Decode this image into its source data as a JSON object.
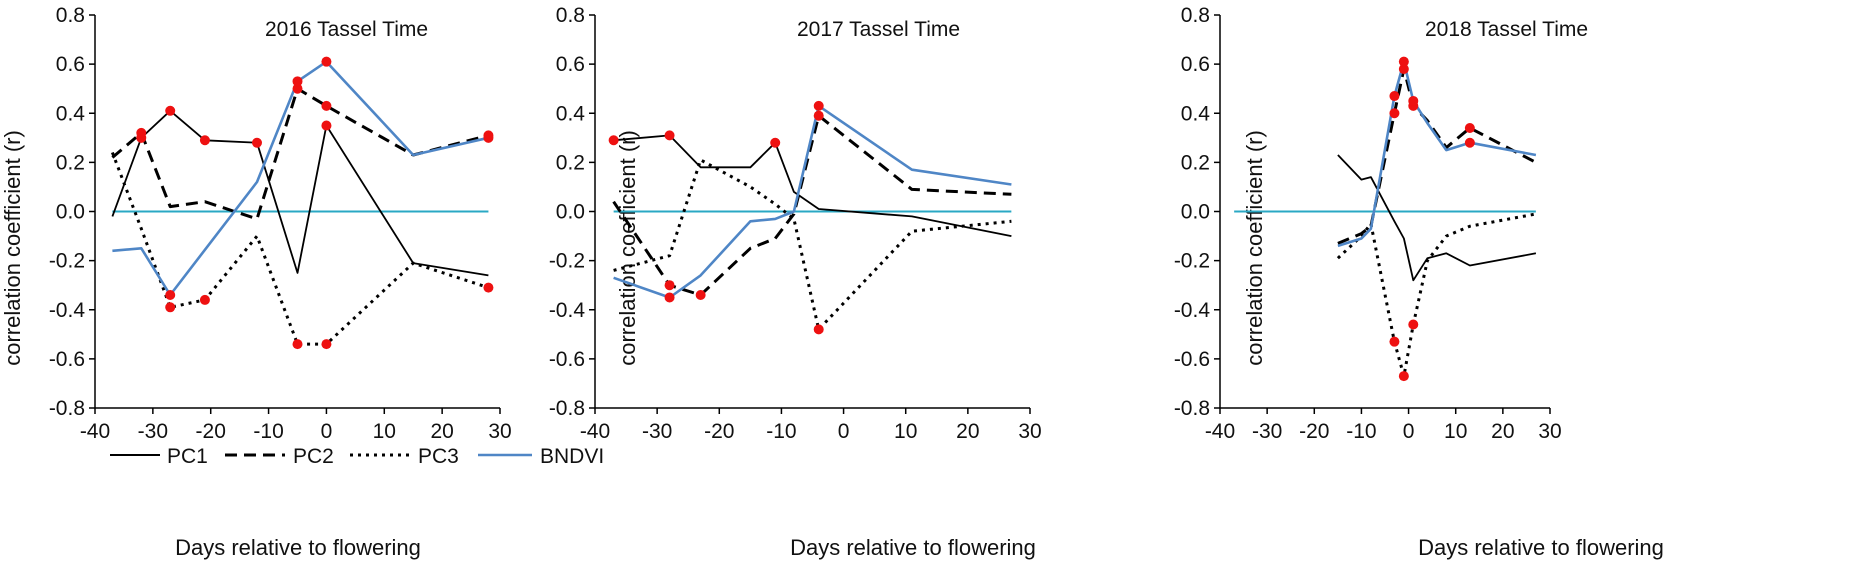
{
  "figure": {
    "legend": [
      {
        "series": "PC1",
        "label": "PC1"
      },
      {
        "series": "PC2",
        "label": "PC2"
      },
      {
        "series": "PC3",
        "label": "PC3"
      },
      {
        "series": "BNDVI",
        "label": "BNDVI"
      }
    ]
  },
  "series_style": {
    "PC1": {
      "color": "#000000",
      "dash": ""
    },
    "PC2": {
      "color": "#000000",
      "dash": "12,7"
    },
    "PC3": {
      "color": "#000000",
      "dash": "3,5"
    },
    "BNDVI": {
      "color": "#4f86c6",
      "dash": ""
    },
    "zero_line": {
      "color": "#2aa8c4"
    },
    "marker": {
      "color": "#ee1111"
    }
  },
  "chart_data": [
    {
      "type": "line",
      "title": "2016 Tassel Time",
      "xlabel": "Days relative to flowering",
      "ylabel": "correlation coefficient (r)",
      "xlim": [
        -40,
        30
      ],
      "ylim": [
        -0.8,
        0.8
      ],
      "xticks": [
        -40,
        -30,
        -20,
        -10,
        0,
        10,
        20,
        30
      ],
      "yticks": [
        -0.8,
        -0.6,
        -0.4,
        -0.2,
        0.0,
        0.2,
        0.4,
        0.6,
        0.8
      ],
      "xtick_labels": [
        "-40",
        "-30",
        "-20",
        "-10",
        "0",
        "10",
        "20",
        "30"
      ],
      "ytick_labels": [
        "-0.8",
        "-0.6",
        "-0.4",
        "-0.2",
        "0.0",
        "0.2",
        "0.4",
        "0.6",
        "0.8"
      ],
      "zero_line_x": [
        -37,
        28
      ],
      "series": [
        {
          "name": "PC1",
          "x": [
            -37,
            -32,
            -27,
            -21,
            -12,
            -5,
            0,
            15,
            28
          ],
          "y": [
            -0.02,
            0.3,
            0.41,
            0.29,
            0.28,
            -0.25,
            0.35,
            -0.21,
            -0.26
          ],
          "sig": [
            false,
            true,
            true,
            true,
            true,
            false,
            true,
            false,
            false
          ]
        },
        {
          "name": "PC2",
          "x": [
            -37,
            -32,
            -27,
            -21,
            -12,
            -5,
            0,
            15,
            28
          ],
          "y": [
            0.22,
            0.32,
            0.02,
            0.04,
            -0.03,
            0.5,
            0.43,
            0.23,
            0.31
          ],
          "sig": [
            false,
            true,
            false,
            false,
            false,
            true,
            true,
            false,
            true
          ]
        },
        {
          "name": "PC3",
          "x": [
            -37,
            -32,
            -27,
            -21,
            -12,
            -5,
            0,
            15,
            28
          ],
          "y": [
            0.24,
            -0.07,
            -0.39,
            -0.36,
            -0.1,
            -0.54,
            -0.54,
            -0.21,
            -0.31
          ],
          "sig": [
            false,
            false,
            true,
            true,
            false,
            true,
            true,
            false,
            true
          ]
        },
        {
          "name": "BNDVI",
          "x": [
            -37,
            -32,
            -27,
            -12,
            -5,
            0,
            15,
            28
          ],
          "y": [
            -0.16,
            -0.15,
            -0.34,
            0.12,
            0.53,
            0.61,
            0.23,
            0.3
          ],
          "sig": [
            false,
            false,
            true,
            false,
            true,
            true,
            false,
            true
          ]
        }
      ]
    },
    {
      "type": "line",
      "title": "2017 Tassel Time",
      "xlabel": "Days relative to flowering",
      "ylabel": "correlation coefficient (r)",
      "xlim": [
        -40,
        30
      ],
      "ylim": [
        -0.8,
        0.8
      ],
      "xticks": [
        -40,
        -30,
        -20,
        -10,
        0,
        10,
        20,
        30
      ],
      "yticks": [
        -0.8,
        -0.6,
        -0.4,
        -0.2,
        0.0,
        0.2,
        0.4,
        0.6,
        0.8
      ],
      "xtick_labels": [
        "-40",
        "-30",
        "-20",
        "-10",
        "0",
        "10",
        "20",
        "30"
      ],
      "ytick_labels": [
        "-0.8",
        "-0.6",
        "-0.4",
        "-0.2",
        "0.0",
        "0.2",
        "0.4",
        "0.6",
        "0.8"
      ],
      "zero_line_x": [
        -37,
        27
      ],
      "series": [
        {
          "name": "PC1",
          "x": [
            -37,
            -28,
            -23,
            -15,
            -11,
            -8,
            -4,
            11,
            27
          ],
          "y": [
            0.29,
            0.31,
            0.18,
            0.18,
            0.28,
            0.08,
            0.01,
            -0.02,
            -0.1
          ],
          "sig": [
            true,
            true,
            false,
            false,
            true,
            false,
            false,
            false,
            false
          ]
        },
        {
          "name": "PC2",
          "x": [
            -37,
            -28,
            -23,
            -15,
            -11,
            -8,
            -4,
            11,
            27
          ],
          "y": [
            0.04,
            -0.3,
            -0.34,
            -0.15,
            -0.11,
            -0.01,
            0.39,
            0.09,
            0.07
          ],
          "sig": [
            false,
            true,
            true,
            false,
            false,
            false,
            true,
            false,
            false
          ]
        },
        {
          "name": "PC3",
          "x": [
            -37,
            -28,
            -23,
            -15,
            -11,
            -8,
            -4,
            11,
            27
          ],
          "y": [
            -0.24,
            -0.18,
            0.21,
            0.1,
            0.03,
            -0.03,
            -0.48,
            -0.08,
            -0.04
          ],
          "sig": [
            false,
            false,
            false,
            false,
            false,
            false,
            true,
            false,
            false
          ]
        },
        {
          "name": "BNDVI",
          "x": [
            -37,
            -28,
            -23,
            -15,
            -11,
            -8,
            -4,
            11,
            27
          ],
          "y": [
            -0.27,
            -0.35,
            -0.26,
            -0.04,
            -0.03,
            0.0,
            0.43,
            0.17,
            0.11
          ],
          "sig": [
            false,
            true,
            false,
            false,
            false,
            false,
            true,
            false,
            false
          ]
        }
      ]
    },
    {
      "type": "line",
      "title": "2018 Tassel Time",
      "xlabel": "Days relative to flowering",
      "ylabel": "correlation coefficient (r)",
      "xlim": [
        -40,
        30
      ],
      "ylim": [
        -0.8,
        0.8
      ],
      "xticks": [
        -40,
        -30,
        -20,
        -10,
        0,
        10,
        20,
        30
      ],
      "yticks": [
        -0.8,
        -0.6,
        -0.4,
        -0.2,
        0.0,
        0.2,
        0.4,
        0.6,
        0.8
      ],
      "xtick_labels": [
        "-40",
        "-30",
        "-20",
        "-10",
        "0",
        "10",
        "20",
        "30"
      ],
      "ytick_labels": [
        "-0.8",
        "-0.6",
        "-0.4",
        "-0.2",
        "0.0",
        "0.2",
        "0.4",
        "0.6",
        "0.8"
      ],
      "zero_line_x": [
        -37,
        27
      ],
      "series": [
        {
          "name": "PC1",
          "x": [
            -15,
            -10,
            -8,
            -3,
            -1,
            1,
            4,
            8,
            13,
            27
          ],
          "y": [
            0.23,
            0.13,
            0.14,
            -0.04,
            -0.11,
            -0.28,
            -0.19,
            -0.17,
            -0.22,
            -0.17
          ],
          "sig": [
            false,
            false,
            false,
            false,
            false,
            false,
            false,
            false,
            false,
            false
          ]
        },
        {
          "name": "PC2",
          "x": [
            -15,
            -10,
            -8,
            -3,
            -1,
            1,
            4,
            8,
            13,
            27
          ],
          "y": [
            -0.13,
            -0.09,
            -0.06,
            0.4,
            0.58,
            0.43,
            0.37,
            0.26,
            0.34,
            0.2
          ],
          "sig": [
            false,
            false,
            false,
            true,
            true,
            true,
            false,
            false,
            true,
            false
          ]
        },
        {
          "name": "PC3",
          "x": [
            -15,
            -10,
            -8,
            -3,
            -1,
            1,
            4,
            8,
            13,
            27
          ],
          "y": [
            -0.19,
            -0.1,
            -0.05,
            -0.53,
            -0.67,
            -0.46,
            -0.2,
            -0.1,
            -0.06,
            -0.01
          ],
          "sig": [
            false,
            false,
            false,
            true,
            true,
            true,
            false,
            false,
            false,
            false
          ]
        },
        {
          "name": "BNDVI",
          "x": [
            -15,
            -10,
            -8,
            -3,
            -1,
            1,
            4,
            8,
            13,
            27
          ],
          "y": [
            -0.14,
            -0.11,
            -0.07,
            0.47,
            0.61,
            0.45,
            0.36,
            0.25,
            0.28,
            0.23
          ],
          "sig": [
            false,
            false,
            false,
            true,
            true,
            true,
            false,
            false,
            true,
            false
          ]
        }
      ]
    }
  ]
}
